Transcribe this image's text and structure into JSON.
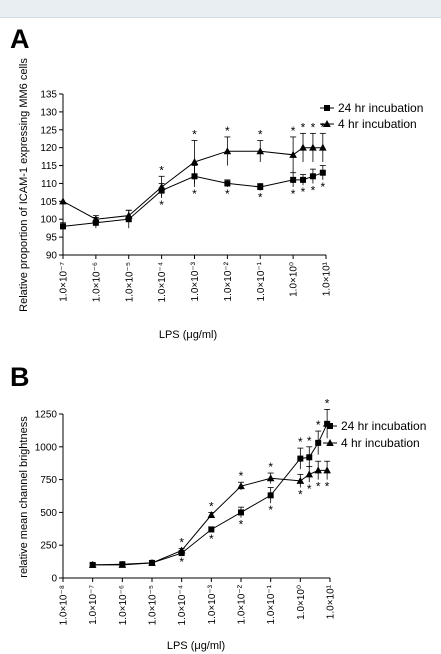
{
  "chart_data": [
    {
      "panel": "A",
      "type": "line",
      "x_tick_labels": [
        "1.0×10⁻⁷",
        "1.0×10⁻⁶",
        "1.0×10⁻⁵",
        "1.0×10⁻⁴",
        "1.0×10⁻³",
        "1.0×10⁻²",
        "1.0×10⁻¹",
        "1.0×10⁰",
        "1.0×10¹"
      ],
      "x_scale": "log",
      "xlim": [
        1e-07,
        10
      ],
      "ylim": [
        90,
        135
      ],
      "y_ticks": [
        90,
        95,
        100,
        105,
        110,
        115,
        120,
        125,
        130,
        135
      ],
      "xlabel": "LPS (μg/ml)",
      "ylabel": "Relative proportion of ICAM-1 expressing MM6 cells",
      "legend_placement": "right",
      "series": [
        {
          "name": "24 hr incubation",
          "marker": "square",
          "x": [
            1e-07,
            1e-06,
            1e-05,
            0.0001,
            0.001,
            0.01,
            0.1,
            1,
            2,
            4,
            8
          ],
          "y": [
            98,
            99,
            100,
            108,
            112,
            110,
            109,
            111,
            111,
            112,
            113
          ],
          "err": [
            1,
            1.5,
            2.5,
            2,
            3,
            1,
            1,
            2,
            1.5,
            2,
            2
          ],
          "sig": [
            false,
            false,
            false,
            true,
            true,
            true,
            true,
            true,
            true,
            true,
            true
          ]
        },
        {
          "name": "4 hr incubation",
          "marker": "triangle",
          "x": [
            1e-07,
            1e-06,
            1e-05,
            0.0001,
            0.001,
            0.01,
            0.1,
            1,
            2,
            4,
            8
          ],
          "y": [
            105,
            100,
            101,
            109,
            116,
            119,
            119,
            118,
            120,
            120,
            120
          ],
          "err": [
            0,
            1,
            1.5,
            3,
            6,
            4,
            3,
            5,
            4,
            4,
            4
          ],
          "sig": [
            false,
            false,
            false,
            true,
            true,
            true,
            true,
            true,
            true,
            true,
            true
          ]
        }
      ]
    },
    {
      "panel": "B",
      "type": "line",
      "x_tick_labels": [
        "1.0×10⁻⁸",
        "1.0×10⁻⁷",
        "1.0×10⁻⁶",
        "1.0×10⁻⁵",
        "1.0×10⁻⁴",
        "1.0×10⁻³",
        "1.0×10⁻²",
        "1.0×10⁻¹",
        "1.0×10⁰",
        "1.0×10¹"
      ],
      "x_scale": "log",
      "xlim": [
        1e-08,
        10
      ],
      "ylim": [
        0,
        1250
      ],
      "y_ticks": [
        0,
        250,
        500,
        750,
        1000,
        1250
      ],
      "xlabel": "LPS (μg/ml)",
      "ylabel": "relative mean channel brightness",
      "legend_placement": "right",
      "series": [
        {
          "name": "24 hr incubation",
          "marker": "square",
          "x": [
            1e-07,
            1e-06,
            1e-05,
            0.0001,
            0.001,
            0.01,
            0.1,
            1,
            2,
            4,
            8
          ],
          "y": [
            100,
            105,
            115,
            190,
            370,
            500,
            630,
            910,
            920,
            1030,
            1175
          ],
          "err": [
            10,
            10,
            10,
            15,
            20,
            40,
            60,
            80,
            80,
            90,
            110
          ],
          "sig": [
            false,
            false,
            false,
            true,
            true,
            true,
            true,
            true,
            true,
            true,
            true
          ],
          "sig_pos": [
            "",
            "",
            "",
            "",
            "below",
            "below",
            "below",
            "above",
            "above",
            "above",
            "above"
          ]
        },
        {
          "name": "4 hr incubation",
          "marker": "triangle",
          "x": [
            1e-07,
            1e-06,
            1e-05,
            0.0001,
            0.001,
            0.01,
            0.1,
            1,
            2,
            4,
            8
          ],
          "y": [
            100,
            100,
            115,
            210,
            480,
            700,
            760,
            740,
            790,
            820,
            820
          ],
          "err": [
            10,
            10,
            10,
            15,
            20,
            30,
            40,
            50,
            60,
            70,
            70
          ],
          "sig": [
            false,
            false,
            false,
            true,
            true,
            true,
            true,
            true,
            true,
            true,
            true
          ],
          "sig_pos": [
            "",
            "",
            "",
            "above",
            "above",
            "above",
            "above",
            "below",
            "below",
            "below",
            "below"
          ]
        }
      ]
    }
  ]
}
